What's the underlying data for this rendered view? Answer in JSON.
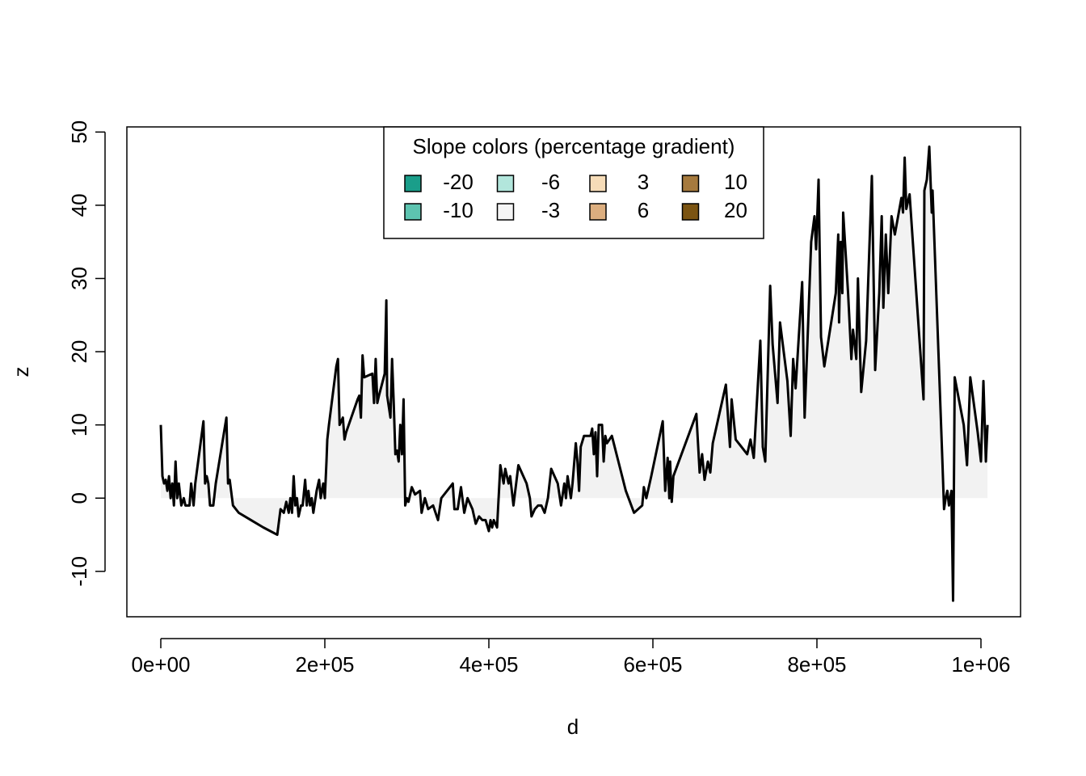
{
  "chart_data": {
    "type": "area-line",
    "xlabel": "d",
    "ylabel": "z",
    "line_color": "#000000",
    "fill_color": "#f2f2f2",
    "xlim": [
      -41379,
      1048276
    ],
    "ylim": [
      -16.2,
      50.7
    ],
    "xticks": [
      {
        "value": 0,
        "label": "0e+00"
      },
      {
        "value": 200000,
        "label": "2e+05"
      },
      {
        "value": 400000,
        "label": "4e+05"
      },
      {
        "value": 600000,
        "label": "6e+05"
      },
      {
        "value": 800000,
        "label": "8e+05"
      },
      {
        "value": 1000000,
        "label": "1e+06"
      }
    ],
    "yticks": [
      -10,
      0,
      10,
      20,
      30,
      40,
      50
    ],
    "legend": {
      "title": "Slope colors (percentage gradient)",
      "corner": "top",
      "items": [
        {
          "label": "-20",
          "color": "#1a9e8a"
        },
        {
          "label": "-10",
          "color": "#5dc4b0"
        },
        {
          "label": "-6",
          "color": "#b2e6dc"
        },
        {
          "label": "-3",
          "color": "#f5f5f5"
        },
        {
          "label": "3",
          "color": "#f6dcb8"
        },
        {
          "label": "6",
          "color": "#dcae7f"
        },
        {
          "label": "10",
          "color": "#a67a3e"
        },
        {
          "label": "20",
          "color": "#7b5412"
        }
      ]
    },
    "x": [
      0,
      2000,
      4000,
      6000,
      8000,
      10000,
      12000,
      14000,
      16000,
      18000,
      20000,
      22000,
      25000,
      28000,
      30000,
      33000,
      35000,
      37000,
      40000,
      42000,
      52000,
      54000,
      56000,
      58000,
      60000,
      64000,
      67000,
      80000,
      82000,
      84000,
      88000,
      95000,
      110000,
      125000,
      142000,
      146000,
      150000,
      153000,
      156000,
      158000,
      160000,
      162000,
      164000,
      166000,
      168000,
      171000,
      173000,
      176000,
      178000,
      180000,
      182000,
      184000,
      186000,
      190000,
      193000,
      195000,
      198000,
      200000,
      202000,
      203000,
      205000,
      214000,
      216000,
      218000,
      222000,
      224000,
      226000,
      240000,
      242000,
      244000,
      246000,
      248000,
      258000,
      260000,
      262000,
      264000,
      266000,
      273000,
      275000,
      276000,
      280000,
      282000,
      284000,
      286000,
      288000,
      290000,
      292000,
      294000,
      296000,
      298000,
      300000,
      302000,
      306000,
      310000,
      316000,
      318000,
      322000,
      326000,
      332000,
      338000,
      342000,
      356000,
      358000,
      362000,
      366000,
      370000,
      374000,
      380000,
      384000,
      388000,
      392000,
      396000,
      400000,
      402000,
      404000,
      406000,
      410000,
      414000,
      418000,
      420000,
      424000,
      426000,
      430000,
      436000,
      446000,
      450000,
      452000,
      456000,
      460000,
      464000,
      468000,
      472000,
      476000,
      484000,
      488000,
      492000,
      494000,
      496000,
      500000,
      502000,
      506000,
      508000,
      510000,
      512000,
      516000,
      524000,
      526000,
      528000,
      530000,
      532000,
      534000,
      538000,
      540000,
      542000,
      544000,
      550000,
      567000,
      577000,
      587000,
      589000,
      592000,
      598000,
      612000,
      615000,
      618000,
      620000,
      621000,
      623000,
      625000,
      653000,
      657000,
      660000,
      663000,
      667000,
      670000,
      673000,
      689000,
      694000,
      696000,
      701000,
      708000,
      715000,
      719000,
      723000,
      731000,
      734000,
      737000,
      743000,
      746000,
      752000,
      755000,
      764000,
      768000,
      771000,
      774000,
      782000,
      785000,
      793000,
      797000,
      799000,
      802000,
      805000,
      809000,
      823000,
      826000,
      827000,
      829000,
      831000,
      832000,
      838000,
      842000,
      844000,
      848000,
      850000,
      854000,
      860000,
      867000,
      871000,
      876000,
      879000,
      881000,
      884000,
      887000,
      891000,
      895000,
      903000,
      905000,
      907000,
      909000,
      913000,
      930000,
      931000,
      934000,
      937000,
      940000,
      941000,
      953000,
      955000,
      957000,
      959000,
      961000,
      964000,
      966000,
      968000,
      979000,
      983000,
      987000,
      996000,
      1000000,
      1003000,
      1006000,
      1008000
    ],
    "values": [
      10,
      3,
      2,
      2.5,
      1,
      3,
      0,
      2,
      -1,
      5,
      0,
      2,
      -1,
      0,
      -1,
      -1,
      -1,
      2,
      -1,
      2,
      10.5,
      2,
      3,
      2,
      -1,
      -1,
      2,
      11,
      2,
      2.5,
      -1,
      -2,
      -3,
      -4,
      -5,
      -1.5,
      -2,
      -0.5,
      -2,
      0,
      -2,
      3,
      -1,
      0,
      -2.5,
      -1,
      -1,
      2.5,
      -1,
      1,
      -1,
      0,
      -2,
      1,
      2.5,
      0,
      2,
      0,
      5,
      8,
      10,
      18,
      19,
      10,
      11,
      8,
      9,
      13.5,
      14,
      11,
      19.5,
      16.5,
      17,
      13,
      19,
      13,
      14,
      17,
      27,
      14,
      11,
      19,
      13,
      6,
      6.5,
      5,
      10,
      6,
      13.5,
      -1,
      0,
      -0.5,
      1.5,
      0.5,
      1,
      -2,
      0,
      -1.5,
      -1,
      -3,
      0,
      2,
      -1.5,
      -1.5,
      1.5,
      -2,
      0,
      -1.5,
      -3.5,
      -2.5,
      -3,
      -3,
      -4.5,
      -3,
      -4,
      -3,
      -4,
      4.5,
      2,
      4,
      2,
      3,
      -1,
      4.5,
      2,
      0,
      -2.5,
      -1.5,
      -1,
      -1,
      -2,
      0,
      4,
      2,
      -1,
      2,
      0,
      3,
      0,
      2,
      7.5,
      5,
      1,
      7,
      8.5,
      8.5,
      9.5,
      6,
      9,
      3,
      10,
      10,
      5,
      8.5,
      7.5,
      8.5,
      1,
      -2,
      -1,
      1.5,
      0,
      3,
      10.5,
      1,
      5.5,
      0,
      5,
      -0.5,
      3,
      11.5,
      3.5,
      6,
      2.5,
      5,
      3.5,
      7.5,
      15.5,
      7,
      13.5,
      8,
      7,
      6,
      8,
      5.5,
      21.5,
      7,
      5,
      29,
      21,
      13,
      24,
      16,
      8.5,
      19,
      15,
      29.5,
      11,
      35,
      38.5,
      34,
      43.5,
      22,
      18,
      28,
      36,
      24,
      35,
      28,
      39,
      28,
      19,
      23,
      19,
      30,
      14.5,
      21.5,
      44,
      17.5,
      28,
      38.5,
      26,
      36,
      28,
      38.5,
      36,
      41,
      39,
      46.5,
      39.5,
      41.5,
      13.5,
      42,
      43.5,
      48,
      39,
      42,
      5,
      -1.5,
      0,
      1,
      -1,
      1,
      -14,
      16.5,
      10,
      4.5,
      16.5,
      9,
      5,
      16,
      5,
      10
    ]
  }
}
